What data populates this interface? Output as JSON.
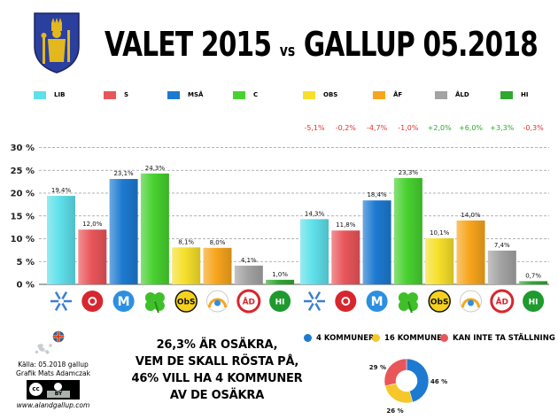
{
  "header": {
    "title_left": "VALET 2015",
    "title_vs": "vs",
    "title_right": "GALLUP 05.2018"
  },
  "colors": {
    "LIB": "#5ee0ea",
    "S": "#e9565a",
    "MSÅ": "#1d7ad1",
    "C": "#48d12f",
    "OBS": "#f6e02a",
    "ÅF": "#f7a51c",
    "ÅLD": "#a3a3a3",
    "HI": "#2fa830",
    "change_text": "#e0332e"
  },
  "chart_data": {
    "type": "bar",
    "categories": [
      "LIB",
      "S",
      "MSÅ",
      "C",
      "OBS",
      "ÅF",
      "ÅLD",
      "HI"
    ],
    "series": [
      {
        "name": "",
        "values": [
          19.4,
          12.0,
          23.1,
          24.3,
          8.1,
          8.0,
          4.1,
          1.0
        ],
        "labels": [
          "19,4%",
          "12,0%",
          "23,1%",
          "24,3%",
          "8,1%",
          "8,0%",
          "4,1%",
          "1,0%"
        ]
      },
      {
        "name": "",
        "values": [
          14.3,
          11.8,
          18.4,
          23.3,
          10.1,
          14.0,
          7.4,
          0.7
        ],
        "labels": [
          "14,3%",
          "11,8%",
          "18,4%",
          "23,3%",
          "10,1%",
          "14,0%",
          "7,4%",
          "0,7%"
        ]
      }
    ],
    "changes": [
      "-5,1%",
      "-0,2%",
      "-4,7%",
      "-1,0%",
      "+2,0%",
      "+6,0%",
      "+3,3%",
      "-0,3%"
    ],
    "yticks": [
      "0 %",
      "5 %",
      "10 %",
      "15 %",
      "20 %",
      "25 %",
      "30 %"
    ],
    "ylim": [
      0,
      30
    ],
    "grid": true,
    "legend_position": "top"
  },
  "party_icon_texts": [
    "ObS",
    "ÅD",
    "HI"
  ],
  "note": {
    "line1": "26,3% ÄR OSÄKRA,",
    "line2": "VEM DE SKALL RÖSTA PÅ,",
    "line3": "46% VILL HA 4 KOMMUNER",
    "line4": "AV DE OSÄKRA"
  },
  "credits": {
    "source": "Källa: 05.2018 gallup",
    "graphic": "Grafik Mats Adamczak",
    "url": "www.alandgallup.com",
    "license_badge": "BY"
  },
  "pie": {
    "legend": [
      {
        "label": "4 KOMMUNER",
        "color": "#1d7ad1"
      },
      {
        "label": "16 KOMMUNER",
        "color": "#f6c72a"
      },
      {
        "label": "KAN INTE TA STÄLLNING",
        "color": "#e9565a"
      }
    ],
    "slices": [
      {
        "value": 46,
        "label": "46 %",
        "color": "#1d7ad1"
      },
      {
        "value": 26,
        "label": "26 %",
        "color": "#f6c72a"
      },
      {
        "value": 29,
        "label": "29 %",
        "color": "#e9565a"
      }
    ]
  }
}
